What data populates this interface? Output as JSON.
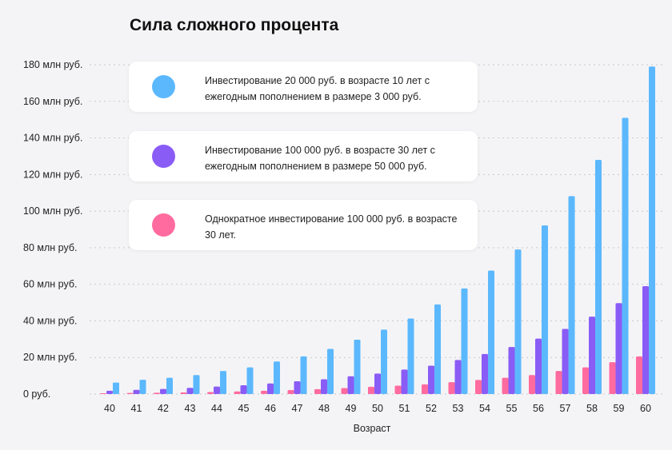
{
  "title": "Сила сложного процента",
  "legend": [
    {
      "label": "Инвестирование 20 000 руб. в возрасте 10 лет с ежегодным пополнением в размере 3 000 руб.",
      "color": "#5cb8fd"
    },
    {
      "label": "Инвестирование 100 000 руб. в возрасте 30 лет с ежегодным пополнением в размере 50 000 руб.",
      "color": "#8a5cf6"
    },
    {
      "label": "Однократное инвестирование 100 000 руб. в возрасте 30 лет.",
      "color": "#ff6b9f"
    }
  ],
  "chart_data": {
    "type": "bar",
    "title": "Сила сложного процента",
    "xlabel": "Возраст",
    "ylabel": "",
    "ylim": [
      0,
      180
    ],
    "yticks": [
      0,
      20,
      40,
      60,
      80,
      100,
      120,
      140,
      160,
      180
    ],
    "ytick_labels": [
      "0 руб.",
      "20 млн руб.",
      "40 млн руб.",
      "60 млн руб.",
      "80 млн руб.",
      "100 млн руб.",
      "120 млн руб.",
      "140 млн руб.",
      "160 млн руб.",
      "180 млн руб."
    ],
    "grid": true,
    "legend_position": "top-left",
    "categories": [
      "40",
      "41",
      "42",
      "43",
      "44",
      "45",
      "46",
      "47",
      "48",
      "49",
      "50",
      "51",
      "52",
      "53",
      "54",
      "55",
      "56",
      "57",
      "58",
      "59",
      "60"
    ],
    "series": [
      {
        "name": "Однократное инвестирование 100 000 руб. в возрасте 30 лет.",
        "color": "#ff6b9f",
        "values": [
          0.4,
          0.6,
          0.7,
          0.9,
          1.1,
          1.4,
          1.8,
          2.2,
          2.7,
          3.3,
          4.0,
          4.6,
          5.3,
          6.5,
          7.7,
          8.9,
          10.4,
          12.6,
          14.6,
          17.4,
          20.6
        ]
      },
      {
        "name": "Инвестирование 100 000 руб. в возрасте 30 лет с ежегодным пополнением в размере 50 000 руб.",
        "color": "#8a5cf6",
        "values": [
          1.8,
          2.3,
          2.8,
          3.4,
          4.1,
          4.8,
          5.8,
          7.0,
          8.1,
          9.7,
          11.2,
          13.4,
          15.5,
          18.6,
          21.9,
          25.7,
          30.3,
          35.6,
          42.3,
          49.7,
          59.0
        ]
      },
      {
        "name": "Инвестирование 20 000 руб. в возрасте 10 лет с ежегодным пополнением в размере 3 000 руб.",
        "color": "#5cb8fd",
        "values": [
          6.3,
          7.8,
          8.9,
          10.4,
          12.6,
          14.6,
          17.8,
          20.6,
          24.7,
          29.7,
          35.2,
          41.3,
          49.0,
          57.7,
          67.5,
          79.0,
          92.2,
          108.2,
          128.0,
          151.0,
          179.0
        ]
      }
    ]
  }
}
